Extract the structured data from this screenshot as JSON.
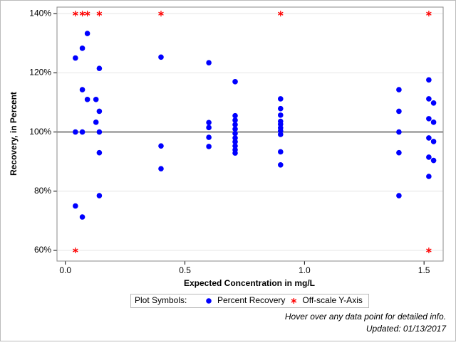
{
  "chart_data": {
    "type": "scatter",
    "xlabel": "Expected Concentration in mg/L",
    "ylabel": "Recovery, in Percent",
    "xlim": [
      -0.035,
      1.58
    ],
    "ylim": [
      56.4,
      142.2
    ],
    "xticks": [
      {
        "value": 0,
        "label": "0.0"
      },
      0.5,
      {
        "value": 1,
        "label": "1.0"
      },
      1.5
    ],
    "yticks": [
      {
        "value": 60,
        "label": "60%"
      },
      {
        "value": 80,
        "label": "80%"
      },
      {
        "value": 100,
        "label": "100%"
      },
      {
        "value": 120,
        "label": "120%"
      },
      {
        "value": 140,
        "label": "140%"
      }
    ],
    "grid": true,
    "reference_line": 100,
    "legend_title": "Plot Symbols:",
    "series": [
      {
        "name": "Percent Recovery",
        "color": "#0000ff",
        "marker": "circle",
        "x": [
          0.042,
          0.042,
          0.042,
          0.071,
          0.071,
          0.071,
          0.071,
          0.092,
          0.092,
          0.128,
          0.128,
          0.142,
          0.142,
          0.142,
          0.142,
          0.142,
          0.4,
          0.4,
          0.4,
          0.6,
          0.6,
          0.6,
          0.6,
          0.6,
          0.71,
          0.71,
          0.71,
          0.71,
          0.71,
          0.71,
          0.71,
          0.71,
          0.71,
          0.71,
          0.71,
          0.9,
          0.9,
          0.9,
          0.9,
          0.9,
          0.9,
          0.9,
          0.9,
          0.9,
          0.9,
          1.395,
          1.395,
          1.395,
          1.395,
          1.395,
          1.52,
          1.52,
          1.52,
          1.52,
          1.52,
          1.52,
          1.54,
          1.54,
          1.54,
          1.54
        ],
        "values": [
          125,
          100,
          75,
          128.3,
          114.3,
          100,
          71.3,
          133.3,
          111,
          111,
          103.3,
          121.5,
          107,
          100,
          93,
          78.5,
          125.3,
          95.3,
          87.6,
          123.4,
          103.2,
          101.5,
          98.2,
          95.1,
          117,
          105.5,
          104,
          102.5,
          101,
          99.5,
          98,
          96.7,
          95.3,
          94,
          92.9,
          111.2,
          107.9,
          105.7,
          103.6,
          102.6,
          101.4,
          100.4,
          99.2,
          93.3,
          88.9,
          114.3,
          107,
          100,
          93,
          78.5,
          117.6,
          111.2,
          104.5,
          98,
          91.5,
          85,
          109.8,
          103.3,
          96.8,
          90.4
        ]
      },
      {
        "name": "Off-scale Y-Axis",
        "color": "#ff0000",
        "marker": "asterisk",
        "x": [
          0.042,
          0.071,
          0.092,
          0.142,
          0.4,
          0.9,
          1.52,
          0.042,
          1.52
        ],
        "values": [
          140,
          140,
          140,
          140,
          140,
          140,
          140,
          60,
          60
        ]
      }
    ],
    "footnotes": [
      "Hover over any data point for detailed info.",
      "Updated: 01/13/2017"
    ]
  }
}
